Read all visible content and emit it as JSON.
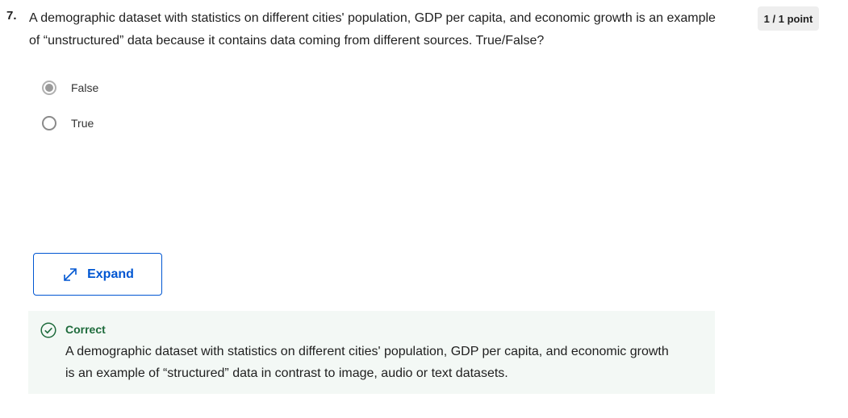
{
  "question": {
    "number": "7.",
    "text": "A demographic dataset with statistics on different cities' population, GDP per capita, and economic growth is an example of “unstructured” data because it contains data coming from different sources. True/False?",
    "points": "1 / 1 point"
  },
  "options": [
    {
      "label": "False",
      "selected": true
    },
    {
      "label": "True",
      "selected": false
    }
  ],
  "expand": {
    "label": "Expand",
    "icon": "expand-arrows-icon"
  },
  "feedback": {
    "status": "Correct",
    "icon": "check-circle-icon",
    "text": "A demographic dataset with statistics on different cities' population, GDP per capita, and economic growth is an example of “structured” data in contrast to image, audio or text datasets."
  },
  "colors": {
    "accent": "#0056d2",
    "success": "#1e6b3c",
    "feedback_bg": "#f3f8f5",
    "badge_bg": "#eeeeee"
  }
}
